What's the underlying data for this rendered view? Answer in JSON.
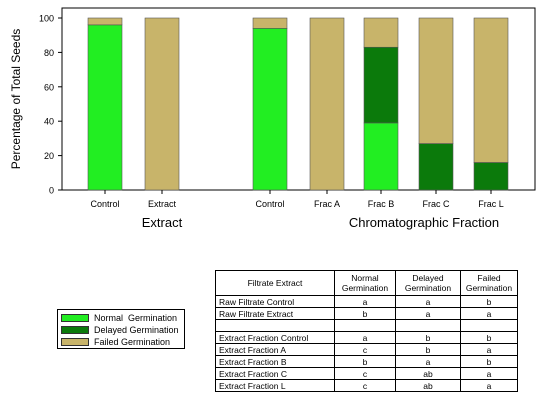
{
  "chart_data": {
    "type": "bar",
    "stacked": true,
    "ylabel": "Percentage of Total Seeds",
    "ylim": [
      0,
      100
    ],
    "yticks": [
      0,
      20,
      40,
      60,
      80,
      100
    ],
    "categories": [
      "Control",
      "Extract",
      "Control",
      "Frac A",
      "Frac B",
      "Frac C",
      "Frac L"
    ],
    "groups": [
      {
        "label": "Extract",
        "categories": [
          "Control",
          "Extract"
        ]
      },
      {
        "label": "Chromatographic Fraction",
        "categories": [
          "Control",
          "Frac A",
          "Frac B",
          "Frac C",
          "Frac L"
        ]
      }
    ],
    "series": [
      {
        "name": "Normal  Germination",
        "color": "#22ee22",
        "values": [
          96,
          0,
          94,
          0,
          39,
          0,
          0
        ]
      },
      {
        "name": "Delayed Germination",
        "color": "#0b7a0b",
        "values": [
          0,
          0,
          0,
          0,
          44,
          27,
          16
        ]
      },
      {
        "name": "Failed Germination",
        "color": "#c8b46a",
        "values": [
          4,
          100,
          6,
          100,
          17,
          73,
          84
        ]
      }
    ],
    "legend_position": "bottom-left"
  },
  "table": {
    "headers": [
      "Filtrate Extract",
      "Normal Germination",
      "Delayed Germination",
      "Failed Germination"
    ],
    "rows": [
      {
        "name": "Raw Filtrate Control",
        "normal": "a",
        "delayed": "a",
        "failed": "b"
      },
      {
        "name": "Raw Filtrate Extract",
        "normal": "b",
        "delayed": "a",
        "failed": "a"
      },
      {
        "name": "",
        "normal": "",
        "delayed": "",
        "failed": ""
      },
      {
        "name": "Extract Fraction Control",
        "normal": "a",
        "delayed": "b",
        "failed": "b"
      },
      {
        "name": "Extract Fraction A",
        "normal": "c",
        "delayed": "b",
        "failed": "a"
      },
      {
        "name": "Extract Fraction B",
        "normal": "b",
        "delayed": "a",
        "failed": "b"
      },
      {
        "name": "Extract Fraction C",
        "normal": "c",
        "delayed": "ab",
        "failed": "a"
      },
      {
        "name": "Extract Fraction L",
        "normal": "c",
        "delayed": "ab",
        "failed": "a"
      }
    ]
  }
}
